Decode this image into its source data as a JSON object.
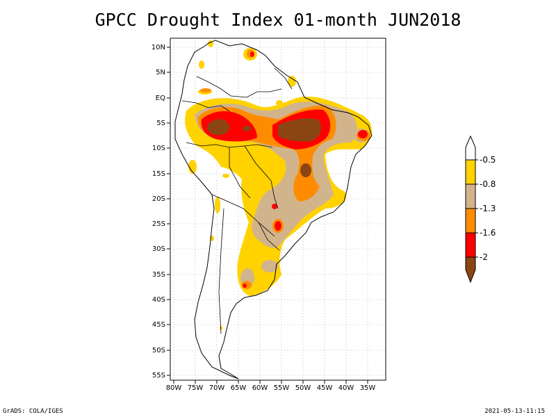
{
  "title": "GPCC Drought Index 01-month JUN2018",
  "footer": {
    "left": "GrADS: COLA/IGES",
    "right": "2021-05-13-11:15"
  },
  "map": {
    "lat_labels": [
      "10N",
      "5N",
      "EQ",
      "5S",
      "10S",
      "15S",
      "20S",
      "25S",
      "30S",
      "35S",
      "40S",
      "45S",
      "50S",
      "55S"
    ],
    "lon_labels": [
      "80W",
      "75W",
      "70W",
      "65W",
      "60W",
      "55W",
      "50W",
      "45W",
      "40W",
      "35W"
    ]
  },
  "legend": {
    "labels": [
      "-0.5",
      "-0.8",
      "-1.3",
      "-1.6",
      "-2"
    ],
    "colors": [
      "#ffffff",
      "#ffd200",
      "#d2b48c",
      "#ff8c00",
      "#ff0000",
      "#8b4513"
    ]
  }
}
